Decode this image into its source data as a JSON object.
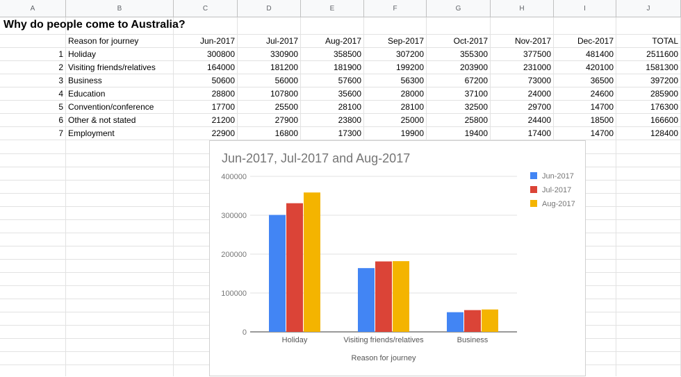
{
  "columns": [
    "A",
    "B",
    "C",
    "D",
    "E",
    "F",
    "G",
    "H",
    "I",
    "J"
  ],
  "sheet_title": "Why do people come to Australia?",
  "header_row": [
    "",
    "Reason for journey",
    "Jun-2017",
    "Jul-2017",
    "Aug-2017",
    "Sep-2017",
    "Oct-2017",
    "Nov-2017",
    "Dec-2017",
    "TOTAL"
  ],
  "rows": [
    [
      "1",
      "Holiday",
      "300800",
      "330900",
      "358500",
      "307200",
      "355300",
      "377500",
      "481400",
      "2511600"
    ],
    [
      "2",
      "Visiting friends/relatives",
      "164000",
      "181200",
      "181900",
      "199200",
      "203900",
      "231000",
      "420100",
      "1581300"
    ],
    [
      "3",
      "Business",
      "50600",
      "56000",
      "57600",
      "56300",
      "67200",
      "73000",
      "36500",
      "397200"
    ],
    [
      "4",
      "Education",
      "28800",
      "107800",
      "35600",
      "28000",
      "37100",
      "24000",
      "24600",
      "285900"
    ],
    [
      "5",
      "Convention/conference",
      "17700",
      "25500",
      "28100",
      "28100",
      "32500",
      "29700",
      "14700",
      "176300"
    ],
    [
      "6",
      "Other & not stated",
      "21200",
      "27900",
      "23800",
      "25000",
      "25800",
      "24400",
      "18500",
      "166600"
    ],
    [
      "7",
      "Employment",
      "22900",
      "16800",
      "17300",
      "19900",
      "19400",
      "17400",
      "14700",
      "128400"
    ]
  ],
  "colors": {
    "jun": "#4285f4",
    "jul": "#db4437",
    "aug": "#f4b400"
  },
  "chart_data": {
    "type": "bar",
    "title": "Jun-2017, Jul-2017 and Aug-2017",
    "xlabel": "Reason for journey",
    "ylabel": "",
    "categories": [
      "Holiday",
      "Visiting friends/relatives",
      "Business"
    ],
    "series": [
      {
        "name": "Jun-2017",
        "values": [
          300800,
          164000,
          50600
        ],
        "color": "#4285f4"
      },
      {
        "name": "Jul-2017",
        "values": [
          330900,
          181200,
          56000
        ],
        "color": "#db4437"
      },
      {
        "name": "Aug-2017",
        "values": [
          358500,
          181900,
          57600
        ],
        "color": "#f4b400"
      }
    ],
    "ylim": [
      0,
      400000
    ],
    "yticks": [
      "0",
      "100000",
      "200000",
      "300000",
      "400000"
    ],
    "grid": true,
    "legend": "right"
  }
}
